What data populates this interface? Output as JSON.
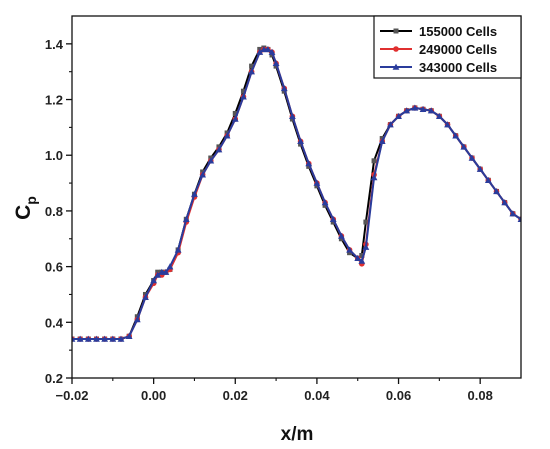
{
  "chart_data": {
    "type": "line",
    "xlabel": "x/m",
    "ylabel": "C",
    "ylabel_sub": "p",
    "xlim": [
      -0.02,
      0.09
    ],
    "ylim": [
      0.2,
      1.5
    ],
    "xticks": [
      -0.02,
      0.0,
      0.02,
      0.04,
      0.06,
      0.08
    ],
    "xtick_labels": [
      "−0.02",
      "0.00",
      "0.02",
      "0.04",
      "0.06",
      "0.08"
    ],
    "yticks": [
      0.2,
      0.4,
      0.6,
      0.8,
      1.0,
      1.2,
      1.4
    ],
    "ytick_labels": [
      "0.2",
      "0.4",
      "0.6",
      "0.8",
      "1.0",
      "1.2",
      "1.4"
    ],
    "grid": false,
    "legend_position": "top-right",
    "series": [
      {
        "name": "155000 Cells",
        "color": "#000000",
        "marker": "square",
        "x": [
          -0.02,
          -0.018,
          -0.016,
          -0.014,
          -0.012,
          -0.01,
          -0.008,
          -0.006,
          -0.004,
          -0.002,
          0.0,
          0.001,
          0.002,
          0.003,
          0.004,
          0.006,
          0.008,
          0.01,
          0.012,
          0.014,
          0.016,
          0.018,
          0.02,
          0.022,
          0.024,
          0.026,
          0.027,
          0.028,
          0.029,
          0.03,
          0.032,
          0.034,
          0.036,
          0.038,
          0.04,
          0.042,
          0.044,
          0.046,
          0.048,
          0.05,
          0.051,
          0.052,
          0.054,
          0.056,
          0.058,
          0.06,
          0.062,
          0.064,
          0.066,
          0.068,
          0.07,
          0.072,
          0.074,
          0.076,
          0.078,
          0.08,
          0.082,
          0.084,
          0.086,
          0.088,
          0.09
        ],
        "y": [
          0.34,
          0.34,
          0.34,
          0.34,
          0.34,
          0.34,
          0.34,
          0.35,
          0.42,
          0.5,
          0.55,
          0.58,
          0.58,
          0.58,
          0.59,
          0.66,
          0.77,
          0.86,
          0.94,
          0.99,
          1.03,
          1.08,
          1.15,
          1.23,
          1.32,
          1.38,
          1.385,
          1.38,
          1.36,
          1.32,
          1.23,
          1.13,
          1.04,
          0.96,
          0.89,
          0.82,
          0.76,
          0.7,
          0.65,
          0.63,
          0.64,
          0.76,
          0.98,
          1.06,
          1.11,
          1.14,
          1.16,
          1.17,
          1.165,
          1.16,
          1.14,
          1.11,
          1.07,
          1.03,
          0.99,
          0.95,
          0.91,
          0.87,
          0.83,
          0.79,
          0.77
        ]
      },
      {
        "name": "249000 Cells",
        "color": "#e03030",
        "marker": "circle",
        "x": [
          -0.02,
          -0.018,
          -0.016,
          -0.014,
          -0.012,
          -0.01,
          -0.008,
          -0.006,
          -0.004,
          -0.002,
          0.0,
          0.001,
          0.002,
          0.003,
          0.004,
          0.006,
          0.008,
          0.01,
          0.012,
          0.014,
          0.016,
          0.018,
          0.02,
          0.022,
          0.024,
          0.026,
          0.027,
          0.028,
          0.029,
          0.03,
          0.032,
          0.034,
          0.036,
          0.038,
          0.04,
          0.042,
          0.044,
          0.046,
          0.048,
          0.05,
          0.051,
          0.052,
          0.054,
          0.056,
          0.058,
          0.06,
          0.062,
          0.064,
          0.066,
          0.068,
          0.07,
          0.072,
          0.074,
          0.076,
          0.078,
          0.08,
          0.082,
          0.084,
          0.086,
          0.088,
          0.09
        ],
        "y": [
          0.34,
          0.34,
          0.34,
          0.34,
          0.34,
          0.34,
          0.34,
          0.35,
          0.41,
          0.49,
          0.54,
          0.57,
          0.57,
          0.58,
          0.59,
          0.65,
          0.76,
          0.85,
          0.93,
          0.98,
          1.02,
          1.07,
          1.13,
          1.21,
          1.3,
          1.37,
          1.38,
          1.38,
          1.37,
          1.33,
          1.24,
          1.14,
          1.05,
          0.97,
          0.9,
          0.83,
          0.77,
          0.71,
          0.66,
          0.63,
          0.61,
          0.68,
          0.93,
          1.05,
          1.11,
          1.14,
          1.16,
          1.17,
          1.165,
          1.16,
          1.14,
          1.11,
          1.07,
          1.03,
          0.99,
          0.95,
          0.91,
          0.87,
          0.83,
          0.79,
          0.77
        ]
      },
      {
        "name": "343000 Cells",
        "color": "#2a3c9c",
        "marker": "triangle",
        "x": [
          -0.02,
          -0.018,
          -0.016,
          -0.014,
          -0.012,
          -0.01,
          -0.008,
          -0.006,
          -0.004,
          -0.002,
          0.0,
          0.001,
          0.002,
          0.003,
          0.004,
          0.006,
          0.008,
          0.01,
          0.012,
          0.014,
          0.016,
          0.018,
          0.02,
          0.022,
          0.024,
          0.026,
          0.027,
          0.028,
          0.029,
          0.03,
          0.032,
          0.034,
          0.036,
          0.038,
          0.04,
          0.042,
          0.044,
          0.046,
          0.048,
          0.05,
          0.051,
          0.052,
          0.054,
          0.056,
          0.058,
          0.06,
          0.062,
          0.064,
          0.066,
          0.068,
          0.07,
          0.072,
          0.074,
          0.076,
          0.078,
          0.08,
          0.082,
          0.084,
          0.086,
          0.088,
          0.09
        ],
        "y": [
          0.34,
          0.34,
          0.34,
          0.34,
          0.34,
          0.34,
          0.34,
          0.35,
          0.41,
          0.49,
          0.55,
          0.57,
          0.58,
          0.58,
          0.6,
          0.66,
          0.77,
          0.86,
          0.93,
          0.98,
          1.02,
          1.07,
          1.13,
          1.21,
          1.3,
          1.37,
          1.38,
          1.38,
          1.37,
          1.33,
          1.24,
          1.14,
          1.05,
          0.97,
          0.9,
          0.83,
          0.77,
          0.71,
          0.66,
          0.63,
          0.62,
          0.67,
          0.92,
          1.05,
          1.11,
          1.14,
          1.16,
          1.17,
          1.165,
          1.16,
          1.14,
          1.11,
          1.07,
          1.03,
          0.99,
          0.95,
          0.91,
          0.87,
          0.83,
          0.79,
          0.77
        ]
      }
    ]
  }
}
